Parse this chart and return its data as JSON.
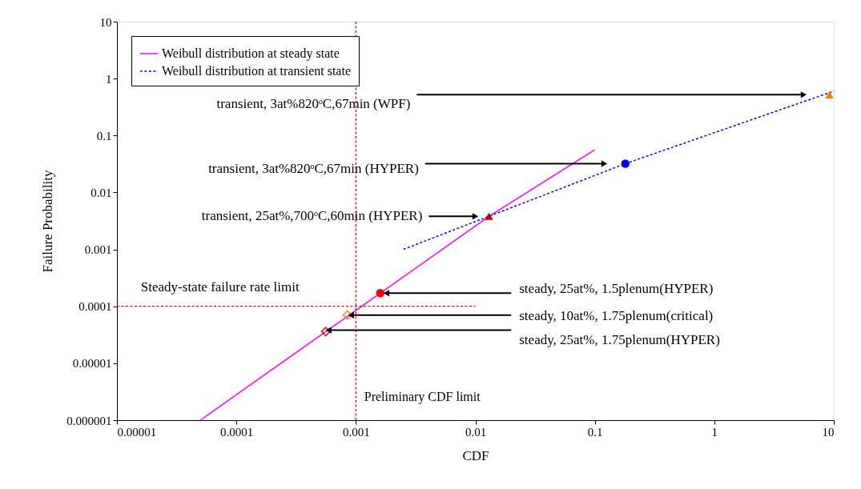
{
  "chart_data": {
    "type": "line",
    "xlabel": "CDF",
    "ylabel": "Failure Probability",
    "log": "xy",
    "xlim": [
      1e-05,
      10
    ],
    "ylim": [
      1e-06,
      10
    ],
    "xticks": [
      {
        "value": 1e-05,
        "label": "0.00001"
      },
      0.0001,
      0.001,
      0.01,
      0.1,
      1,
      10
    ],
    "yticks": [
      {
        "value": 1e-06,
        "label": "0.000001"
      },
      {
        "value": 1e-05,
        "label": "0.00001"
      },
      0.0001,
      0.001,
      0.01,
      0.1,
      1,
      10
    ],
    "grid": false,
    "legend": "top left",
    "marker": "none",
    "series": [
      {
        "name": "Weibull distribution at steady state",
        "type": "line",
        "color": "#ff00ff",
        "line_style": "solid",
        "x": [
          5e-05,
          0.0001,
          0.00056,
          0.0016,
          0.013,
          0.1
        ],
        "values": [
          1e-06,
          2.8e-06,
          3.6e-05,
          0.00017,
          0.0038,
          0.056
        ]
      },
      {
        "name": "Weibull distribution at transient state",
        "type": "line",
        "color": "#0000ff",
        "line_style": "dashed",
        "x": [
          0.0025,
          0.013,
          0.18,
          10
        ],
        "values": [
          0.001,
          0.0038,
          0.032,
          0.6
        ]
      },
      {
        "type": "line",
        "color": "#ff0000",
        "line_style": "dashed",
        "x": [
          1e-05,
          0.01
        ],
        "values": [
          0.0001,
          0.0001
        ]
      },
      {
        "type": "scatter",
        "marker": "diamond",
        "color": "#ff0000",
        "x": [
          0.00056
        ],
        "values": [
          3.6e-05
        ]
      },
      {
        "type": "scatter",
        "marker": "diamond",
        "color": "#ff8000",
        "x": [
          0.00085
        ],
        "values": [
          7e-05
        ]
      },
      {
        "type": "scatter",
        "marker": "circle",
        "color": "#ff0000",
        "x": [
          0.0016
        ],
        "values": [
          0.00017
        ]
      },
      {
        "type": "scatter",
        "marker": "triangle",
        "color": "#c00000",
        "x": [
          0.013
        ],
        "values": [
          0.0038
        ]
      },
      {
        "type": "scatter",
        "marker": "circle",
        "color": "#0000ff",
        "x": [
          0.18
        ],
        "values": [
          0.032
        ]
      },
      {
        "type": "scatter",
        "marker": "triangle",
        "color": "#ff8000",
        "x": [
          9.2
        ],
        "values": [
          0.52
        ]
      }
    ],
    "ref_lines": [
      {
        "axis": "x",
        "value": 0.001,
        "label": "Preliminary CDF limit",
        "color": "#ff0000",
        "line_style": "dashed"
      }
    ],
    "annotations": [
      {
        "text": "transient, 3at%820ᵒC,67min (WPF)",
        "x": 5.6,
        "y": 0.52
      },
      {
        "text": "transient, 3at%820ᵒC,67min (HYPER)",
        "x": 0.12,
        "y": 0.032
      },
      {
        "text": "transient, 25at%,700ᵒC,60min (HYPER)",
        "x": 0.01,
        "y": 0.0038
      },
      {
        "text": "steady, 25at%, 1.5plenum(HYPER)",
        "x": 0.0018,
        "y": 0.00017
      },
      {
        "text": "steady, 10at%, 1.75plenum(critical)",
        "x": 0.00091,
        "y": 7e-05
      },
      {
        "text": "steady, 25at%, 1.75plenum(HYPER)",
        "x": 0.00059,
        "y": 3.8e-05
      },
      "Steady-state failure rate limit"
    ]
  }
}
